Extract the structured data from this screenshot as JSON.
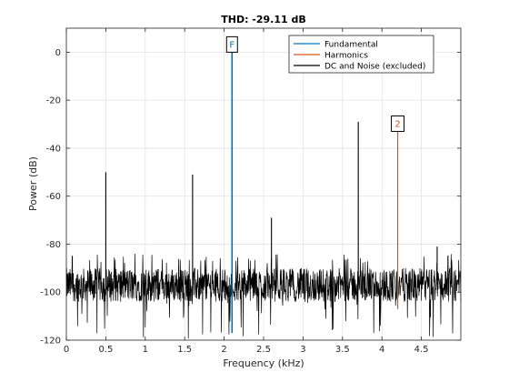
{
  "chart_data": {
    "type": "line",
    "title": "THD: -29.11 dB",
    "xlabel": "Frequency (kHz)",
    "ylabel": "Power (dB)",
    "xlim": [
      0,
      5
    ],
    "ylim": [
      -120,
      10
    ],
    "xticks": [
      0,
      0.5,
      1,
      1.5,
      2,
      2.5,
      3,
      3.5,
      4,
      4.5
    ],
    "xtick_labels": [
      "0",
      "0.5",
      "1",
      "1.5",
      "2",
      "2.5",
      "3",
      "3.5",
      "4",
      "4.5"
    ],
    "yticks": [
      -120,
      -100,
      -80,
      -60,
      -40,
      -20,
      0
    ],
    "ytick_labels": [
      "-120",
      "-100",
      "-80",
      "-60",
      "-40",
      "-20",
      "0"
    ],
    "grid": true,
    "legend_position": "top-right",
    "series": [
      {
        "name": "Fundamental",
        "color": "#0072BD",
        "peaks": [
          {
            "x": 2.1,
            "y": 0
          }
        ],
        "marker_label": "F"
      },
      {
        "name": "Harmonics",
        "color": "#D95319",
        "peaks": [
          {
            "x": 4.2,
            "y": -33
          }
        ],
        "marker_label": "2"
      },
      {
        "name": "DC and Noise (excluded)",
        "color": "#000000",
        "noise_floor": -97,
        "noise_range": [
          -120,
          -84
        ],
        "spurs": [
          {
            "x": 0.5,
            "y": -50
          },
          {
            "x": 1.6,
            "y": -51
          },
          {
            "x": 2.6,
            "y": -69
          },
          {
            "x": 3.7,
            "y": -29
          },
          {
            "x": 4.7,
            "y": -81
          }
        ]
      }
    ]
  }
}
